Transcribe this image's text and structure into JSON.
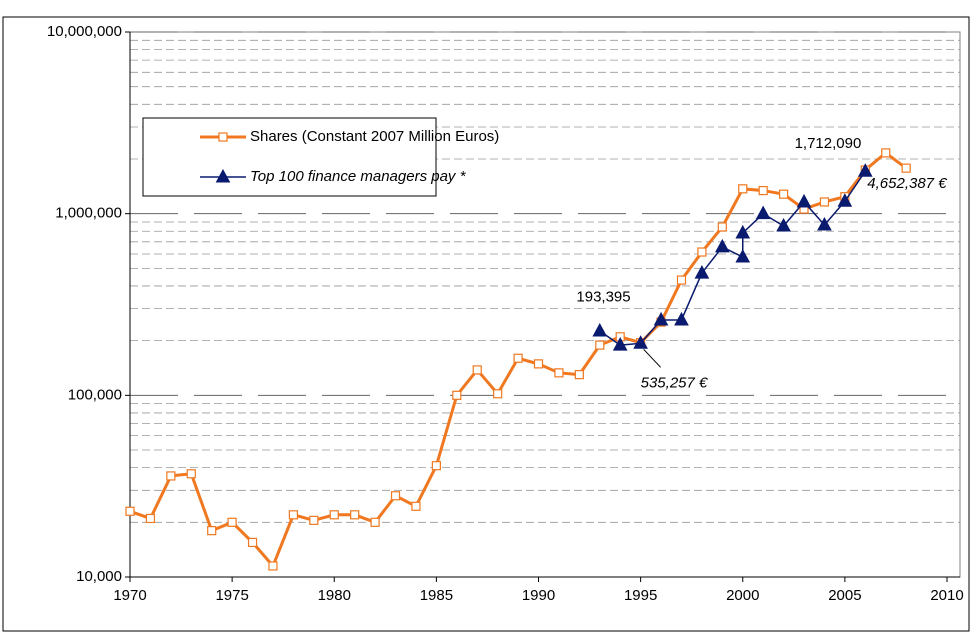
{
  "chart_data": {
    "type": "line",
    "log_y": true,
    "grid": true,
    "minor_grid": true,
    "xlim": [
      1970,
      2010
    ],
    "xticks": [
      1970,
      1975,
      1980,
      1985,
      1990,
      1995,
      2000,
      2005,
      2010
    ],
    "ylim": [
      10000,
      10000000
    ],
    "yticks": [
      {
        "value": 10000,
        "label": "10,000"
      },
      {
        "value": 100000,
        "label": "100,000"
      },
      {
        "value": 1000000,
        "label": "1,000,000"
      },
      {
        "value": 10000000,
        "label": "10,000,000"
      }
    ],
    "legend": "upper left",
    "series": [
      {
        "name": "Shares (Constant 2007 Million Euros)",
        "color": "#f07820",
        "marker": "square",
        "x": [
          1970,
          1971,
          1972,
          1973,
          1974,
          1975,
          1976,
          1977,
          1978,
          1979,
          1980,
          1981,
          1982,
          1983,
          1984,
          1985,
          1986,
          1987,
          1988,
          1989,
          1990,
          1991,
          1992,
          1993,
          1994,
          1995,
          1996,
          1997,
          1998,
          1999,
          2000,
          2001,
          2002,
          2003,
          2004,
          2005,
          2006,
          2007,
          2008
        ],
        "values": [
          23000,
          21000,
          36000,
          37000,
          18000,
          20000,
          15500,
          11500,
          22000,
          20500,
          22000,
          22000,
          20000,
          28000,
          24500,
          41000,
          100000,
          138000,
          102000,
          160000,
          149000,
          133000,
          130000,
          189000,
          210000,
          195000,
          253000,
          431000,
          615000,
          845000,
          1370000,
          1340000,
          1280000,
          1060000,
          1160000,
          1240000,
          1740000,
          2160000,
          1780000
        ]
      },
      {
        "name": "Top 100 finance managers pay *",
        "color": "#0a1a6e",
        "marker": "triangle",
        "italic": true,
        "x": [
          1993,
          1994,
          1995,
          1996,
          1997,
          1998,
          1999,
          2000,
          2000,
          2001,
          2002,
          2003,
          2004,
          2005,
          2006
        ],
        "values": [
          226000,
          189000,
          193395,
          260000,
          260000,
          471000,
          656000,
          577000,
          783000,
          1000000,
          855000,
          1160000,
          866000,
          1170000,
          1712090
        ]
      }
    ],
    "annotations": [
      {
        "text": "193,395",
        "x": 1995,
        "y": 193395
      },
      {
        "text": "535,257 €",
        "x": 1995,
        "y": 193395,
        "italic": true
      },
      {
        "text": "1,712,090",
        "x": 2006,
        "y": 1712090
      },
      {
        "text": "4,652,387 €",
        "x": 2006,
        "y": 1712090,
        "italic": true
      }
    ]
  }
}
